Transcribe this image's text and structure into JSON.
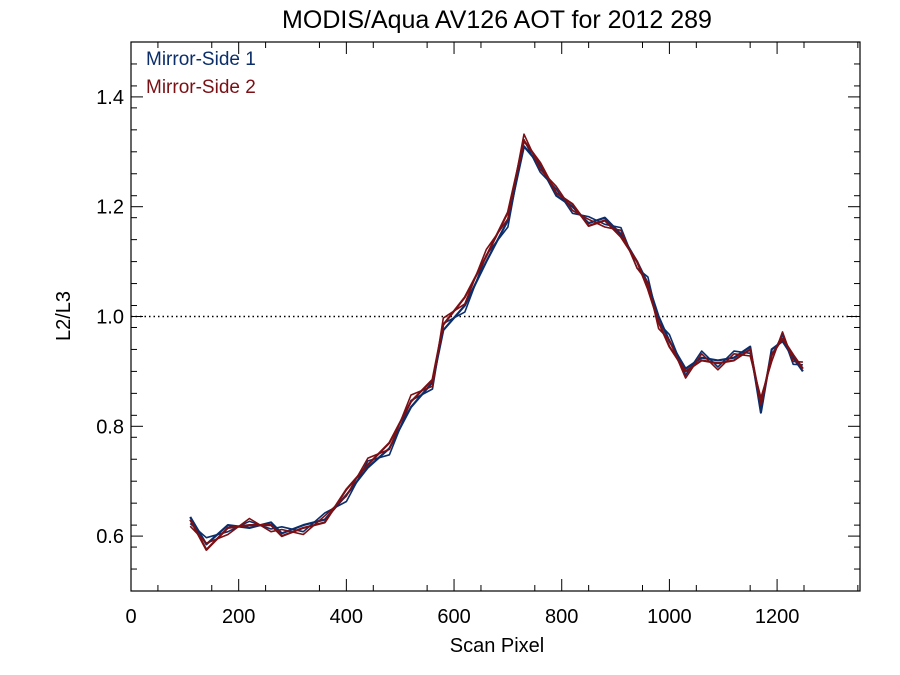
{
  "chart_data": {
    "type": "line",
    "title": "MODIS/Aqua AV126 AOT for 2012 289",
    "xlabel": "Scan Pixel",
    "ylabel": "L2/L3",
    "xlim": [
      0,
      1354
    ],
    "ylim": [
      0.5,
      1.5
    ],
    "xticks": [
      0,
      200,
      400,
      600,
      800,
      1000,
      1200
    ],
    "yticks": [
      0.6,
      0.8,
      1.0,
      1.2,
      1.4
    ],
    "xtick_labels": [
      "0",
      "200",
      "400",
      "600",
      "800",
      "1000",
      "1200"
    ],
    "ytick_labels": [
      "0.6",
      "0.8",
      "1.0",
      "1.2",
      "1.4"
    ],
    "reference_line": {
      "y": 1.0,
      "style": "dotted"
    },
    "legend_position": "top-left",
    "grid": false,
    "x": [
      110,
      140,
      180,
      220,
      260,
      280,
      320,
      360,
      400,
      440,
      480,
      520,
      560,
      580,
      620,
      660,
      700,
      730,
      760,
      790,
      820,
      850,
      880,
      910,
      940,
      960,
      980,
      1000,
      1030,
      1060,
      1090,
      1120,
      1150,
      1170,
      1190,
      1210,
      1230,
      1248
    ],
    "series": [
      {
        "name": "Mirror-Side 1",
        "color": "#0b2e6b",
        "values": [
          0.635,
          0.585,
          0.62,
          0.615,
          0.625,
          0.605,
          0.62,
          0.63,
          0.675,
          0.725,
          0.76,
          0.835,
          0.88,
          0.975,
          1.02,
          1.1,
          1.175,
          1.31,
          1.275,
          1.22,
          1.2,
          1.17,
          1.18,
          1.15,
          1.1,
          1.06,
          1.0,
          0.955,
          0.905,
          0.925,
          0.92,
          0.925,
          0.945,
          0.825,
          0.94,
          0.955,
          0.925,
          0.9
        ]
      },
      {
        "name": "Mirror-Side 2",
        "color": "#7a0f14",
        "values": [
          0.63,
          0.575,
          0.615,
          0.62,
          0.62,
          0.6,
          0.615,
          0.625,
          0.685,
          0.73,
          0.77,
          0.845,
          0.885,
          0.985,
          1.035,
          1.11,
          1.19,
          1.32,
          1.28,
          1.225,
          1.205,
          1.165,
          1.175,
          1.145,
          1.1,
          1.05,
          0.99,
          0.945,
          0.9,
          0.92,
          0.915,
          0.92,
          0.94,
          0.84,
          0.93,
          0.96,
          0.93,
          0.905
        ]
      }
    ]
  }
}
